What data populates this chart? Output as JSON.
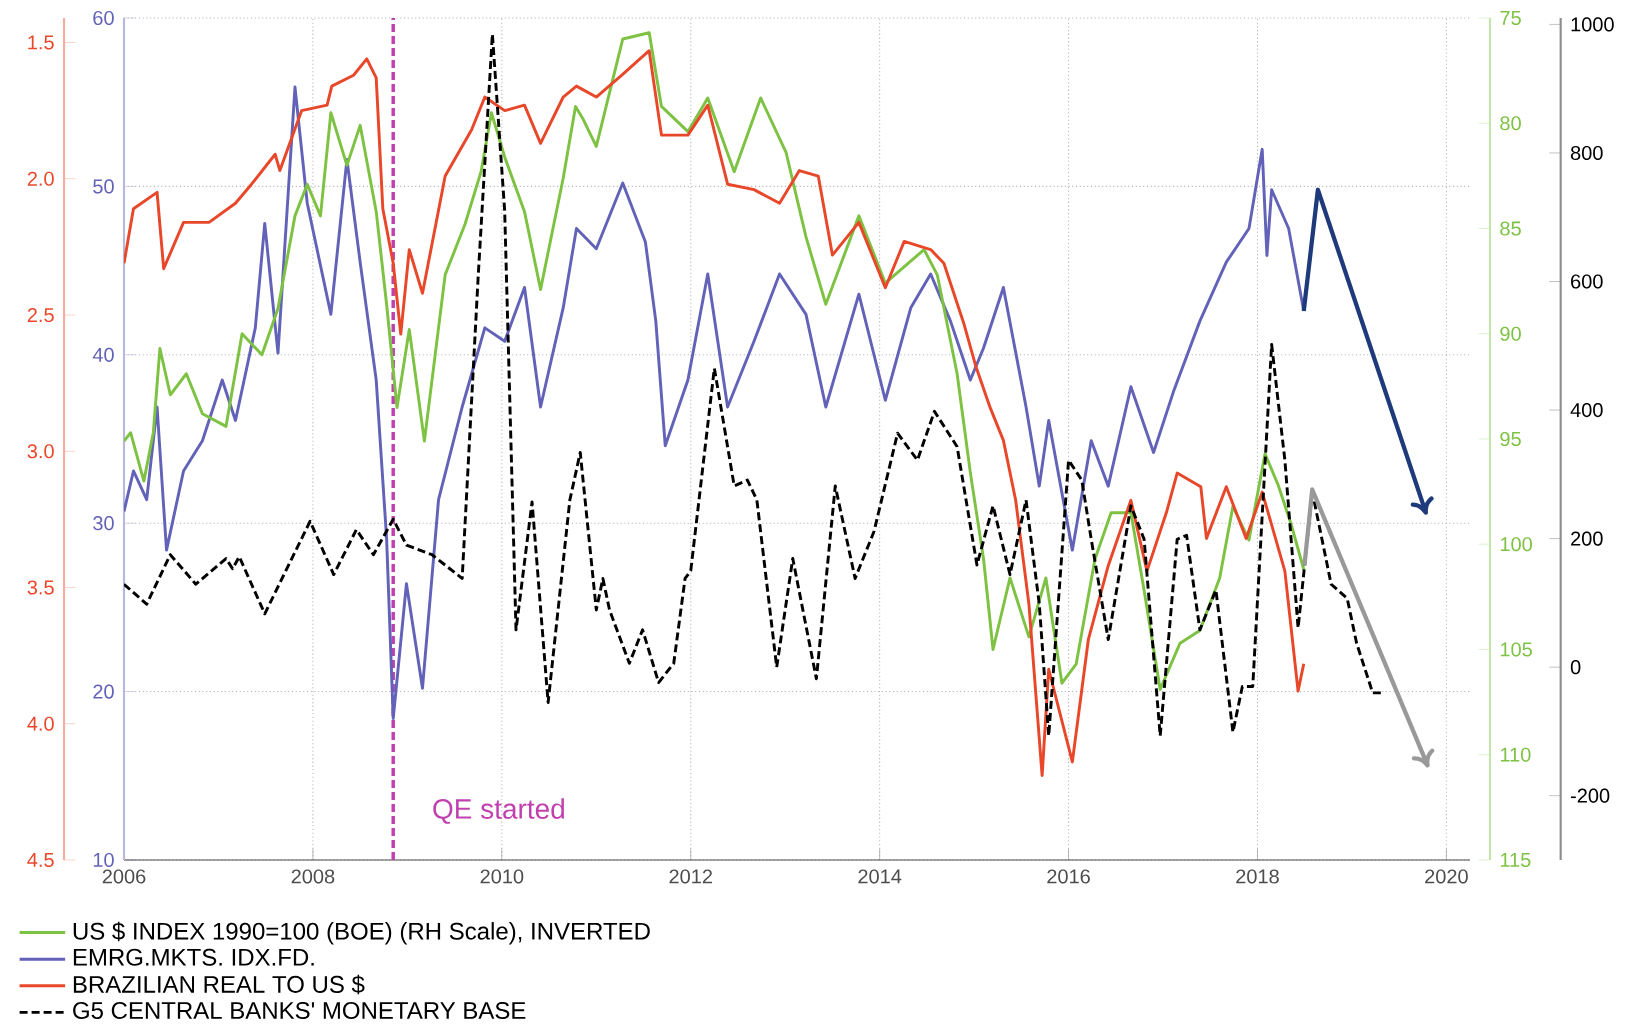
{
  "chart_data": [
    {
      "type": "line",
      "grid": true,
      "legend": "bottom",
      "xlim": [
        2006,
        2020.25
      ],
      "xticks": [
        2006,
        2008,
        2010,
        2012,
        2014,
        2016,
        2018,
        2020
      ],
      "ylim": [
        10,
        60
      ],
      "yticks": [
        10,
        20,
        30,
        40,
        50,
        60
      ],
      "y2lim": [
        115,
        75
      ],
      "y2ticks": [
        75,
        80,
        85,
        90,
        95,
        100,
        105,
        110,
        115
      ],
      "series": [
        {
          "name": "US $ INDEX 1990=100 (BOE) (RH Scale), INVERTED",
          "color": "#7dc242",
          "axis": "y2",
          "x": [
            2006.0,
            2006.07,
            2006.21,
            2006.31,
            2006.38,
            2006.49,
            2006.66,
            2006.83,
            2007.08,
            2007.25,
            2007.46,
            2007.63,
            2007.81,
            2007.94,
            2008.08,
            2008.19,
            2008.36,
            2008.5,
            2008.67,
            2008.78,
            2008.89,
            2009.02,
            2009.18,
            2009.4,
            2009.61,
            2009.78,
            2009.89,
            2010.03,
            2010.24,
            2010.41,
            2010.65,
            2010.78,
            2010.86,
            2011.0,
            2011.28,
            2011.56,
            2011.69,
            2011.97,
            2012.18,
            2012.46,
            2012.74,
            2013.01,
            2013.22,
            2013.43,
            2013.78,
            2014.06,
            2014.47,
            2014.61,
            2014.82,
            2014.96,
            2015.1,
            2015.2,
            2015.38,
            2015.58,
            2015.76,
            2015.93,
            2016.08,
            2016.28,
            2016.45,
            2016.66,
            2016.8,
            2016.97,
            2017.18,
            2017.39,
            2017.6,
            2017.74,
            2017.91,
            2018.08,
            2018.22,
            2018.36,
            2018.49
          ],
          "values": [
            95.1,
            94.7,
            97.0,
            94.7,
            90.7,
            92.9,
            91.9,
            93.8,
            94.4,
            90.0,
            91.0,
            88.8,
            84.4,
            82.9,
            84.4,
            79.5,
            82.0,
            80.1,
            84.2,
            88.6,
            93.5,
            89.8,
            95.1,
            87.2,
            84.8,
            82.3,
            79.5,
            81.6,
            84.2,
            87.9,
            82.6,
            79.2,
            79.8,
            81.1,
            76.0,
            75.7,
            79.2,
            80.4,
            78.8,
            82.3,
            78.8,
            81.4,
            85.4,
            88.6,
            84.4,
            87.6,
            86.0,
            87.2,
            91.9,
            96.6,
            100.7,
            105.0,
            101.6,
            104.4,
            101.6,
            106.6,
            105.7,
            100.7,
            98.5,
            98.5,
            102.2,
            106.9,
            104.7,
            104.1,
            101.6,
            98.2,
            99.8,
            95.7,
            97.2,
            99.1,
            101.2
          ]
        },
        {
          "name": "EMRG.MKTS. IDX.FD.",
          "color": "#6262b8",
          "x": [
            2006.0,
            2006.1,
            2006.24,
            2006.35,
            2006.45,
            2006.63,
            2006.83,
            2007.04,
            2007.18,
            2007.39,
            2007.49,
            2007.63,
            2007.81,
            2007.94,
            2008.19,
            2008.36,
            2008.5,
            2008.67,
            2008.78,
            2008.85,
            2008.99,
            2009.16,
            2009.33,
            2009.58,
            2009.82,
            2010.03,
            2010.24,
            2010.41,
            2010.65,
            2010.79,
            2011.0,
            2011.28,
            2011.52,
            2011.63,
            2011.73,
            2011.97,
            2012.18,
            2012.39,
            2012.67,
            2012.94,
            2013.22,
            2013.43,
            2013.78,
            2014.06,
            2014.33,
            2014.54,
            2014.75,
            2014.96,
            2015.1,
            2015.31,
            2015.55,
            2015.69,
            2015.79,
            2016.04,
            2016.24,
            2016.42,
            2016.66,
            2016.9,
            2017.11,
            2017.39,
            2017.67,
            2017.91,
            2018.05,
            2018.1,
            2018.15,
            2018.33,
            2018.49
          ],
          "values": [
            30.7,
            33.1,
            31.4,
            36.9,
            28.4,
            33.1,
            34.9,
            38.5,
            36.1,
            41.6,
            47.8,
            40.1,
            55.9,
            49.0,
            42.4,
            51.6,
            45.5,
            38.5,
            29.1,
            18.4,
            26.4,
            20.2,
            31.4,
            36.9,
            41.6,
            40.8,
            44.0,
            36.9,
            42.8,
            47.5,
            46.3,
            50.2,
            46.7,
            42.0,
            34.6,
            38.5,
            44.8,
            36.9,
            40.8,
            44.8,
            42.4,
            36.9,
            43.6,
            37.3,
            42.8,
            44.8,
            42.0,
            38.5,
            40.4,
            44.0,
            36.9,
            32.2,
            36.1,
            28.4,
            34.9,
            32.2,
            38.1,
            34.2,
            37.8,
            42.0,
            45.5,
            47.5,
            52.2,
            45.9,
            49.8,
            47.5,
            42.6
          ]
        }
      ],
      "ref_lines": [
        {
          "axis": "x",
          "value": 2008.85,
          "label": "QE started",
          "color": "#c040b0",
          "line_style": "dashed"
        }
      ]
    },
    {
      "type": "line",
      "legend": "bottom",
      "tick_labels": "y",
      "xlim": [
        2006,
        2020.25
      ],
      "ylim": [
        4.5,
        1.41
      ],
      "yticks": [
        {
          "value": 1.5,
          "label": "1.5"
        },
        {
          "value": 2,
          "label": "2.0"
        },
        {
          "value": 2.5,
          "label": "2.5"
        },
        {
          "value": 3,
          "label": "3.0"
        },
        {
          "value": 3.5,
          "label": "3.5"
        },
        {
          "value": 4,
          "label": "4.0"
        },
        {
          "value": 4.5,
          "label": "4.5"
        }
      ],
      "y2lim": [
        -300,
        1010
      ],
      "y2ticks": [
        -200,
        0,
        200,
        400,
        600,
        800,
        1000
      ],
      "series": [
        {
          "name": "BRAZILIAN REAL TO US $",
          "color": "#e8472a",
          "x": [
            2006.0,
            2006.1,
            2006.35,
            2006.42,
            2006.63,
            2006.9,
            2007.18,
            2007.35,
            2007.6,
            2007.65,
            2007.88,
            2008.15,
            2008.2,
            2008.43,
            2008.57,
            2008.67,
            2008.74,
            2008.85,
            2008.93,
            2009.02,
            2009.16,
            2009.4,
            2009.68,
            2009.82,
            2010.03,
            2010.24,
            2010.41,
            2010.65,
            2010.79,
            2011.0,
            2011.27,
            2011.56,
            2011.69,
            2011.97,
            2012.18,
            2012.39,
            2012.67,
            2012.94,
            2013.15,
            2013.35,
            2013.5,
            2013.78,
            2014.06,
            2014.26,
            2014.54,
            2014.68,
            2014.89,
            2015.02,
            2015.17,
            2015.31,
            2015.44,
            2015.58,
            2015.72,
            2015.79,
            2016.04,
            2016.21,
            2016.42,
            2016.66,
            2016.83,
            2017.04,
            2017.15,
            2017.4,
            2017.46,
            2017.67,
            2017.88,
            2018.05,
            2018.15,
            2018.29,
            2018.43,
            2018.49
          ],
          "values": [
            2.31,
            2.11,
            2.05,
            2.33,
            2.16,
            2.16,
            2.09,
            2.02,
            1.91,
            1.97,
            1.75,
            1.73,
            1.66,
            1.62,
            1.56,
            1.63,
            2.11,
            2.31,
            2.57,
            2.26,
            2.42,
            1.99,
            1.82,
            1.7,
            1.75,
            1.73,
            1.87,
            1.7,
            1.66,
            1.7,
            1.62,
            1.53,
            1.84,
            1.84,
            1.73,
            2.02,
            2.04,
            2.09,
            1.97,
            1.99,
            2.28,
            2.16,
            2.4,
            2.23,
            2.26,
            2.31,
            2.53,
            2.69,
            2.84,
            2.96,
            3.18,
            3.56,
            4.19,
            3.8,
            4.14,
            3.69,
            3.42,
            3.18,
            3.44,
            3.22,
            3.08,
            3.13,
            3.32,
            3.13,
            3.32,
            3.15,
            3.27,
            3.44,
            3.88,
            3.78
          ]
        },
        {
          "name": "G5 CENTRAL BANKS' MONETARY BASE",
          "color": "#000000",
          "axis": "y2",
          "line_style": "dashed",
          "x": [
            2006.0,
            2006.24,
            2006.49,
            2006.76,
            2007.08,
            2007.15,
            2007.22,
            2007.49,
            2007.97,
            2008.22,
            2008.46,
            2008.64,
            2008.85,
            2008.99,
            2009.26,
            2009.58,
            2009.75,
            2009.9,
            2010.03,
            2010.15,
            2010.32,
            2010.49,
            2010.72,
            2010.83,
            2011.0,
            2011.07,
            2011.14,
            2011.35,
            2011.49,
            2011.66,
            2011.82,
            2011.94,
            2012.0,
            2012.25,
            2012.46,
            2012.6,
            2012.7,
            2012.91,
            2013.08,
            2013.33,
            2013.53,
            2013.74,
            2013.94,
            2014.19,
            2014.4,
            2014.58,
            2014.82,
            2015.03,
            2015.2,
            2015.38,
            2015.55,
            2015.69,
            2015.79,
            2016.0,
            2016.14,
            2016.24,
            2016.42,
            2016.66,
            2016.8,
            2016.97,
            2017.15,
            2017.25,
            2017.39,
            2017.56,
            2017.74,
            2017.84,
            2017.95,
            2018.15,
            2018.29,
            2018.43,
            2018.58,
            2018.78,
            2018.95,
            2019.05,
            2019.22,
            2019.33
          ],
          "values": [
            129,
            98,
            175,
            129,
            169,
            153,
            172,
            83,
            227,
            144,
            214,
            175,
            230,
            190,
            175,
            138,
            609,
            985,
            710,
            58,
            257,
            -55,
            260,
            334,
            89,
            138,
            89,
            6,
            58,
            -24,
            6,
            138,
            150,
            465,
            282,
            291,
            260,
            0,
            169,
            -18,
            282,
            138,
            211,
            364,
            322,
            398,
            343,
            159,
            251,
            144,
            260,
            98,
            -107,
            322,
            291,
            199,
            43,
            251,
            199,
            -107,
            199,
            205,
            58,
            120,
            -101,
            -30,
            -30,
            502,
            322,
            61,
            273,
            129,
            107,
            37,
            -40,
            -40
          ]
        }
      ]
    }
  ]
}
